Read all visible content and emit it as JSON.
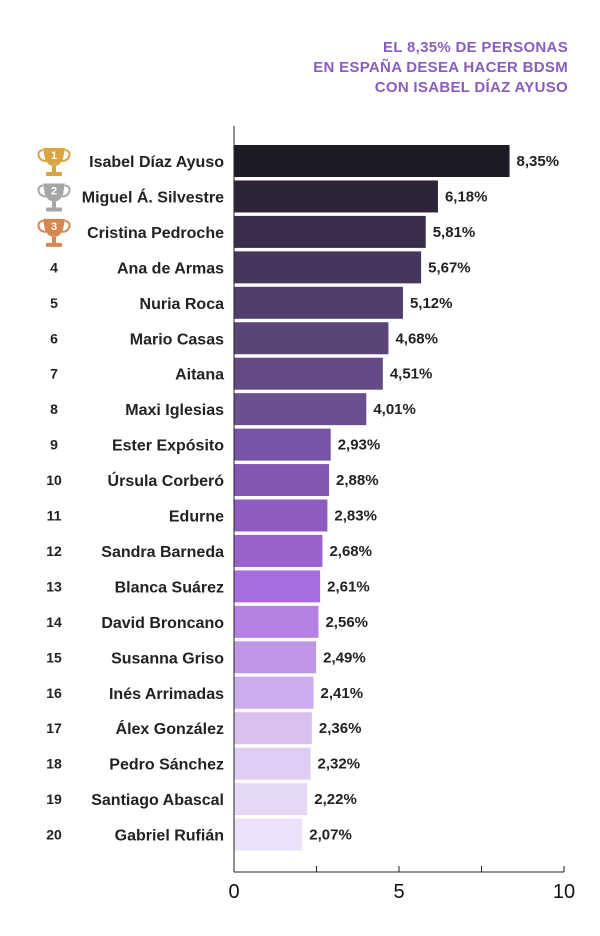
{
  "title_lines": [
    "EL 8,35% DE PERSONAS",
    "EN ESPAÑA DESEA HACER BDSM",
    "CON ISABEL DÍAZ AYUSO"
  ],
  "colors": {
    "title": "#8a5cc0",
    "text": "#222222",
    "gold": "#d9a441",
    "silver": "#a6a6a6",
    "bronze": "#d4874f"
  },
  "chart_data": {
    "type": "bar",
    "orientation": "horizontal",
    "title": "EL 8,35% DE PERSONAS EN ESPAÑA DESEA HACER BDSM CON ISABEL DÍAZ AYUSO",
    "categories": [
      "Isabel Díaz Ayuso",
      "Miguel Á. Silvestre",
      "Cristina Pedroche",
      "Ana de Armas",
      "Nuria Roca",
      "Mario Casas",
      "Aitana",
      "Maxi Iglesias",
      "Ester Expósito",
      "Úrsula Corberó",
      "Edurne",
      "Sandra Barneda",
      "Blanca Suárez",
      "David Broncano",
      "Susanna Griso",
      "Inés Arrimadas",
      "Álex González",
      "Pedro Sánchez",
      "Santiago Abascal",
      "Gabriel Rufián"
    ],
    "ranks": [
      "1",
      "2",
      "3",
      "4",
      "5",
      "6",
      "7",
      "8",
      "9",
      "10",
      "11",
      "12",
      "13",
      "14",
      "15",
      "16",
      "17",
      "18",
      "19",
      "20"
    ],
    "rank_icons": [
      "trophy-gold",
      "trophy-silver",
      "trophy-bronze"
    ],
    "values": [
      8.35,
      6.18,
      5.81,
      5.67,
      5.12,
      4.68,
      4.51,
      4.01,
      2.93,
      2.88,
      2.83,
      2.68,
      2.61,
      2.56,
      2.49,
      2.41,
      2.36,
      2.32,
      2.22,
      2.07
    ],
    "value_labels": [
      "8,35%",
      "6,18%",
      "5,81%",
      "5,67%",
      "5,12%",
      "4,68%",
      "4,51%",
      "4,01%",
      "2,93%",
      "2,88%",
      "2,83%",
      "2,68%",
      "2,61%",
      "2,56%",
      "2,49%",
      "2,41%",
      "2,36%",
      "2,32%",
      "2,22%",
      "2,07%"
    ],
    "bar_colors": [
      "#1e1a26",
      "#2d2438",
      "#3a2d4c",
      "#46365c",
      "#523e6d",
      "#5b4478",
      "#634a84",
      "#6b5090",
      "#7854a8",
      "#8557b4",
      "#8e5cbe",
      "#9b62cc",
      "#a86dde",
      "#b582e4",
      "#bf97e6",
      "#cbacec",
      "#d8c1f1",
      "#dfcdf4",
      "#e5d8f7",
      "#ece2f9"
    ],
    "xlim": [
      0,
      10
    ],
    "xticks": [
      0,
      5,
      10
    ],
    "xtick_labels": [
      "0",
      "5",
      "10"
    ],
    "grid": false,
    "legend": "none"
  }
}
